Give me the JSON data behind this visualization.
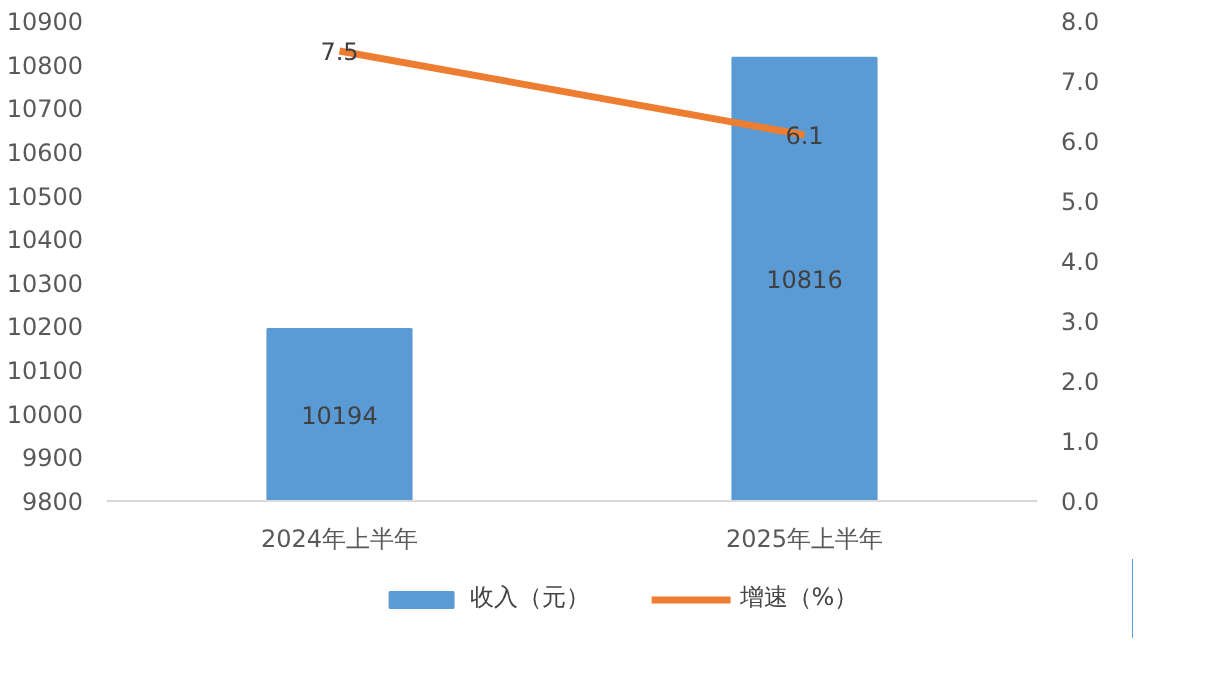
{
  "chart_data": {
    "type": "bar",
    "categories": [
      "2024年上半年",
      "2025年上半年"
    ],
    "series": [
      {
        "name": "收入（元）",
        "color": "#5b9bd5",
        "values": [
          10194,
          10816
        ]
      },
      {
        "name": "增速（%）",
        "type": "line",
        "axis": "y2",
        "color": "#ed7d31",
        "values": [
          7.5,
          6.1
        ]
      }
    ],
    "ylim": [
      9800,
      10900
    ],
    "yticks": [
      9800,
      9900,
      10000,
      10100,
      10200,
      10300,
      10400,
      10500,
      10600,
      10700,
      10800,
      10900
    ],
    "y2lim": [
      0,
      8
    ],
    "y2ticks": [
      {
        "value": 0,
        "label": "0.0"
      },
      {
        "value": 1,
        "label": "1.0"
      },
      {
        "value": 2,
        "label": "2.0"
      },
      {
        "value": 3,
        "label": "3.0"
      },
      {
        "value": 4,
        "label": "4.0"
      },
      {
        "value": 5,
        "label": "5.0"
      },
      {
        "value": 6,
        "label": "6.0"
      },
      {
        "value": 7,
        "label": "7.0"
      },
      {
        "value": 8,
        "label": "8.0"
      }
    ],
    "data_labels": true,
    "legend": "bottom",
    "grid": false,
    "marker": "none",
    "line_style": "solid"
  }
}
